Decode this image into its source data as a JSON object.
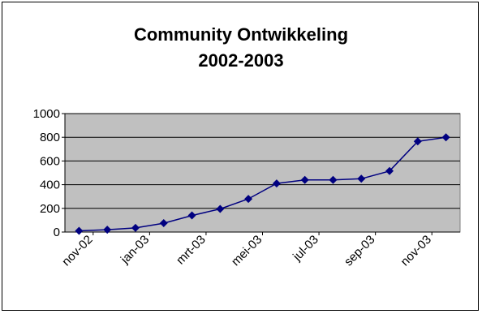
{
  "chart_data": {
    "type": "line",
    "title_lines": [
      "Community Ontwikkeling",
      "2002-2003"
    ],
    "xlabel": "",
    "ylabel": "",
    "ylim": [
      0,
      1000
    ],
    "yticks": [
      0,
      200,
      400,
      600,
      800,
      1000
    ],
    "grid": true,
    "legend": "none",
    "plot_bg": "#c0c0c0",
    "line_color": "#000080",
    "marker": "diamond",
    "x_tick_labels": [
      "nov-02",
      "jan-03",
      "mrt-03",
      "mei-03",
      "jul-03",
      "sep-03",
      "nov-03"
    ],
    "series": [
      {
        "x": [
          "2002-11-01",
          "2002-12-01",
          "2003-01-01",
          "2003-02-01",
          "2003-03-01",
          "2003-04-01",
          "2003-05-01",
          "2003-06-01",
          "2003-07-01",
          "2003-08-01",
          "2003-09-01",
          "2003-10-01",
          "2003-11-01",
          "2003-12-01"
        ],
        "values": [
          10,
          20,
          35,
          75,
          140,
          195,
          280,
          410,
          440,
          440,
          450,
          515,
          765,
          800
        ]
      }
    ]
  }
}
